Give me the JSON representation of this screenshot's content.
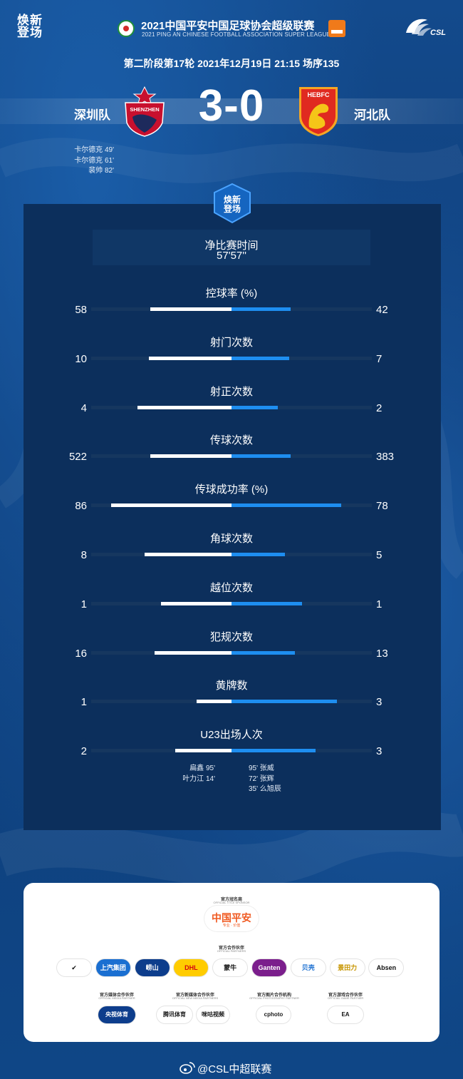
{
  "header": {
    "brand": "焕新登场",
    "league_title": "2021中国平安中国足球协会超级联赛",
    "league_subtitle": "2021 PING AN CHINESE FOOTBALL ASSOCIATION SUPER LEAGUE",
    "csl_text": "CSL",
    "icons": [
      "league-emblem-icon",
      "ping-an-logo-icon",
      "csl-logo-icon"
    ]
  },
  "match": {
    "info": "第二阶段第17轮  2021年12月19日 21:15 场序135",
    "home": {
      "name": "深圳队",
      "crest_text": "SHENZHEN",
      "color": "#c8102e"
    },
    "away": {
      "name": "河北队",
      "crest_text": "HEBFC",
      "color": "#e02a20"
    },
    "score": "3-0",
    "scorers": [
      {
        "player": "卡尔德克",
        "minute": "49'"
      },
      {
        "player": "卡尔德克",
        "minute": "61'"
      },
      {
        "player": "裴帅",
        "minute": "82'"
      }
    ]
  },
  "panel": {
    "badge_text": "焕新登场",
    "net_time_label": "净比赛时间",
    "net_time_value": "57'57''"
  },
  "stats": [
    {
      "label": "控球率 (%)",
      "home": "58",
      "away": "42",
      "home_frac": 0.58,
      "away_frac": 0.42
    },
    {
      "label": "射门次数",
      "home": "10",
      "away": "7",
      "home_frac": 0.59,
      "away_frac": 0.41
    },
    {
      "label": "射正次数",
      "home": "4",
      "away": "2",
      "home_frac": 0.67,
      "away_frac": 0.33
    },
    {
      "label": "传球次数",
      "home": "522",
      "away": "383",
      "home_frac": 0.58,
      "away_frac": 0.42
    },
    {
      "label": "传球成功率 (%)",
      "home": "86",
      "away": "78",
      "home_frac": 0.86,
      "away_frac": 0.78
    },
    {
      "label": "角球次数",
      "home": "8",
      "away": "5",
      "home_frac": 0.62,
      "away_frac": 0.38
    },
    {
      "label": "越位次数",
      "home": "1",
      "away": "1",
      "home_frac": 0.5,
      "away_frac": 0.5
    },
    {
      "label": "犯规次数",
      "home": "16",
      "away": "13",
      "home_frac": 0.55,
      "away_frac": 0.45
    },
    {
      "label": "黄牌数",
      "home": "1",
      "away": "3",
      "home_frac": 0.25,
      "away_frac": 0.75
    },
    {
      "label": "U23出场人次",
      "home": "2",
      "away": "3",
      "home_frac": 0.4,
      "away_frac": 0.6
    }
  ],
  "u23": {
    "home": [
      {
        "player": "扁鑫",
        "minute": "95'"
      },
      {
        "player": "叶力江",
        "minute": "14'"
      }
    ],
    "away": [
      {
        "minute": "95'",
        "player": "张威"
      },
      {
        "minute": "72'",
        "player": "张辉"
      },
      {
        "minute": "35'",
        "player": "么旭辰"
      }
    ]
  },
  "sponsors": {
    "title_sponsor_label": "官方冠名商",
    "title_sponsor_label_en": "OFFICIAL TITLE SPONSOR",
    "title_sponsor": "中国平安",
    "title_sponsor_sub": "专业 · 价值",
    "partners_label": "官方合作伙伴",
    "partners_label_en": "OFFICIAL PARTNERS",
    "partners": [
      {
        "name": "✔",
        "color": "#111111",
        "bg": "#ffffff"
      },
      {
        "name": "上汽集团",
        "color": "#ffffff",
        "bg": "#1a6fd1"
      },
      {
        "name": "崂山",
        "color": "#ffffff",
        "bg": "#0d3d8c"
      },
      {
        "name": "DHL",
        "color": "#d40511",
        "bg": "#ffcc00"
      },
      {
        "name": "蒙牛",
        "color": "#1a1a1a",
        "bg": "#ffffff"
      },
      {
        "name": "Ganten",
        "color": "#ffffff",
        "bg": "#7b1e8c"
      },
      {
        "name": "贝壳",
        "color": "#1a6fd1",
        "bg": "#ffffff"
      },
      {
        "name": "景田力",
        "color": "#c79500",
        "bg": "#ffffff"
      },
      {
        "name": "Absen",
        "color": "#111111",
        "bg": "#ffffff"
      }
    ],
    "media_groups": [
      {
        "label": "官方媒体合作伙伴",
        "label_en": "OFFICIAL MEDIA PARTNER"
      },
      {
        "label": "官方新媒体合作伙伴",
        "label_en": "OFFICIAL NEW MEDIA PARTNERS"
      },
      {
        "label": "官方图片合作机构",
        "label_en": "OFFICIAL PHOTOGRAPHY PARTNER"
      },
      {
        "label": "官方游戏合作伙伴",
        "label_en": "OFFICIAL GAME PARTNER"
      }
    ],
    "media": [
      {
        "name": "央视体育",
        "color": "#ffffff",
        "bg": "#0d3d8c"
      },
      {
        "name": "腾讯体育",
        "color": "#1a1a1a",
        "bg": "#ffffff"
      },
      {
        "name": "咪咕视频",
        "color": "#1a1a1a",
        "bg": "#ffffff"
      },
      {
        "name": "cphoto",
        "color": "#1a1a1a",
        "bg": "#ffffff"
      },
      {
        "name": "EA",
        "color": "#111111",
        "bg": "#ffffff"
      }
    ]
  },
  "footer": {
    "weibo": "@CSL中超联赛"
  }
}
